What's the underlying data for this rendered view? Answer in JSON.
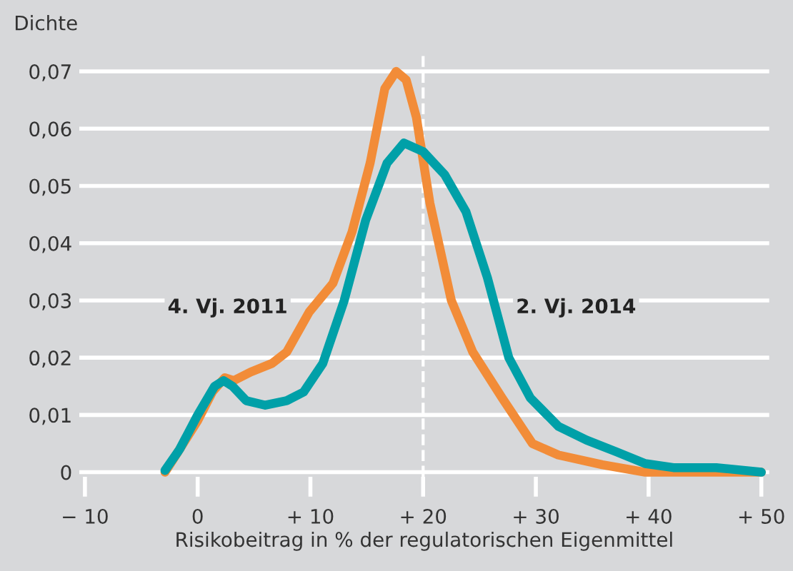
{
  "chart_data": {
    "type": "line",
    "xlabel": "Risikobeitrag in % der regulatorischen Eigenmittel",
    "ylabel": "Dichte",
    "xlim": [
      -10.5,
      50.7
    ],
    "ylim": [
      -0.0008,
      0.073
    ],
    "xticks": [
      {
        "value": -10,
        "label": "− 10"
      },
      0,
      {
        "value": 10,
        "label": "+ 10"
      },
      {
        "value": 20,
        "label": "+ 20"
      },
      {
        "value": 30,
        "label": "+ 30"
      },
      {
        "value": 40,
        "label": "+ 40"
      },
      {
        "value": 50,
        "label": "+ 50"
      }
    ],
    "yticks": [
      0,
      {
        "value": 0.01,
        "label": "0,01"
      },
      {
        "value": 0.02,
        "label": "0,02"
      },
      {
        "value": 0.03,
        "label": "0,03"
      },
      {
        "value": 0.04,
        "label": "0,04"
      },
      {
        "value": 0.05,
        "label": "0,05"
      },
      {
        "value": 0.06,
        "label": "0,06"
      },
      {
        "value": 0.07,
        "label": "0,07"
      }
    ],
    "grid": "y",
    "legend": false,
    "marker": "none",
    "line_style": "solid",
    "ref_lines": [
      {
        "axis": "x",
        "value": 20,
        "color": "#ffffff",
        "line_style": "dashed"
      }
    ],
    "series": [
      {
        "name": "4. Vj. 2011",
        "color": "#f28c38",
        "x": [
          -2.9,
          -1.6,
          0,
          1.3,
          2.4,
          3.2,
          4.7,
          6.6,
          7.9,
          9.9,
          12,
          13.7,
          15.3,
          16.6,
          17.6,
          18.5,
          19.4,
          20.6,
          22.5,
          24.4,
          27,
          29.7,
          32,
          35.9,
          39.7,
          46,
          50
        ],
        "values": [
          0,
          0.004,
          0.009,
          0.014,
          0.0165,
          0.016,
          0.0175,
          0.019,
          0.021,
          0.028,
          0.033,
          0.042,
          0.054,
          0.067,
          0.07,
          0.0685,
          0.062,
          0.047,
          0.03,
          0.021,
          0.013,
          0.005,
          0.003,
          0.0013,
          0,
          0,
          0
        ]
      },
      {
        "name": "2. Vj. 2014",
        "color": "#00a0a8",
        "x": [
          -2.9,
          -1.6,
          0,
          1.5,
          2.3,
          3.1,
          4.3,
          6,
          7.9,
          9.4,
          11.1,
          13,
          14.9,
          16.8,
          18.3,
          20,
          21.9,
          23.8,
          25.7,
          27.6,
          29.5,
          32,
          34.5,
          37.1,
          39.7,
          42.2,
          46,
          50
        ],
        "values": [
          0.0003,
          0.004,
          0.01,
          0.015,
          0.016,
          0.015,
          0.0125,
          0.0117,
          0.0125,
          0.014,
          0.019,
          0.03,
          0.044,
          0.054,
          0.0575,
          0.056,
          0.052,
          0.0455,
          0.034,
          0.02,
          0.013,
          0.008,
          0.0056,
          0.0036,
          0.0015,
          0.0008,
          0.0008,
          0
        ]
      }
    ]
  }
}
